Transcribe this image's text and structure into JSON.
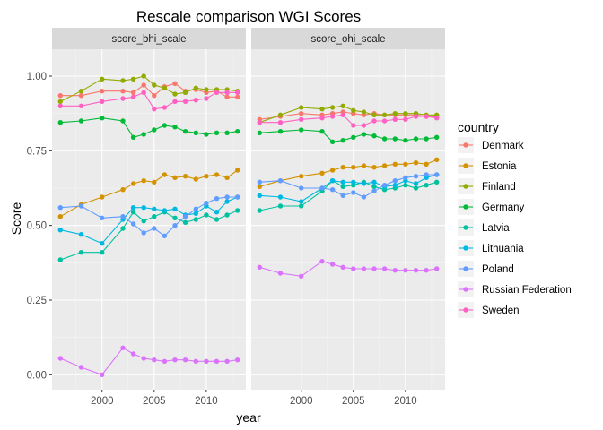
{
  "chart_data": {
    "type": "line",
    "title": "Rescale comparison WGI Scores",
    "xlabel": "year",
    "ylabel": "Score",
    "xlim": [
      1995.2,
      2013.8
    ],
    "ylim": [
      -0.05,
      1.09
    ],
    "x_ticks": [
      2000,
      2005,
      2010
    ],
    "x_tick_labels": [
      "2000",
      "2005",
      "2010"
    ],
    "y_ticks": [
      0,
      0.25,
      0.5,
      0.75,
      1.0
    ],
    "y_tick_labels": [
      "0.00",
      "0.25",
      "0.50",
      "0.75",
      "1.00"
    ],
    "grid": true,
    "legend_title": "country",
    "legend_position": "right",
    "x": [
      1996,
      1998,
      2000,
      2002,
      2003,
      2004,
      2005,
      2006,
      2007,
      2008,
      2009,
      2010,
      2011,
      2012,
      2013
    ],
    "panels": [
      {
        "name": "score_bhi_scale",
        "series": [
          {
            "name": "Denmark",
            "color": "#F8766D",
            "values": [
              0.935,
              0.935,
              0.95,
              0.95,
              0.945,
              0.97,
              0.935,
              0.965,
              0.975,
              0.95,
              0.955,
              0.945,
              0.95,
              0.93,
              0.93
            ]
          },
          {
            "name": "Estonia",
            "color": "#D39200",
            "values": [
              0.53,
              0.57,
              0.595,
              0.62,
              0.64,
              0.65,
              0.645,
              0.67,
              0.66,
              0.665,
              0.655,
              0.665,
              0.67,
              0.66,
              0.685
            ]
          },
          {
            "name": "Finland",
            "color": "#93AA00",
            "values": [
              0.915,
              0.95,
              0.99,
              0.985,
              0.99,
              1.0,
              0.97,
              0.96,
              0.94,
              0.945,
              0.96,
              0.955,
              0.955,
              0.955,
              0.95
            ]
          },
          {
            "name": "Germany",
            "color": "#00BA38",
            "values": [
              0.845,
              0.85,
              0.86,
              0.85,
              0.795,
              0.805,
              0.82,
              0.835,
              0.83,
              0.815,
              0.81,
              0.805,
              0.81,
              0.81,
              0.815
            ]
          },
          {
            "name": "Latvia",
            "color": "#00C19F",
            "values": [
              0.385,
              0.41,
              0.41,
              0.49,
              0.545,
              0.515,
              0.53,
              0.545,
              0.525,
              0.51,
              0.52,
              0.535,
              0.52,
              0.535,
              0.55
            ]
          },
          {
            "name": "Lithuania",
            "color": "#00B9E3",
            "values": [
              0.485,
              0.47,
              0.44,
              0.52,
              0.56,
              0.56,
              0.555,
              0.55,
              0.555,
              0.535,
              0.54,
              0.565,
              0.545,
              0.58,
              0.595
            ]
          },
          {
            "name": "Poland",
            "color": "#619CFF",
            "values": [
              0.56,
              0.565,
              0.525,
              0.53,
              0.505,
              0.475,
              0.49,
              0.465,
              0.5,
              0.53,
              0.555,
              0.575,
              0.59,
              0.595,
              0.595
            ]
          },
          {
            "name": "Russian Federation",
            "color": "#DB72FB",
            "values": [
              0.055,
              0.025,
              0.0,
              0.09,
              0.07,
              0.055,
              0.05,
              0.045,
              0.05,
              0.05,
              0.045,
              0.045,
              0.045,
              0.045,
              0.05
            ]
          },
          {
            "name": "Sweden",
            "color": "#FF61C3",
            "values": [
              0.9,
              0.9,
              0.915,
              0.925,
              0.93,
              0.945,
              0.89,
              0.895,
              0.915,
              0.915,
              0.92,
              0.925,
              0.945,
              0.945,
              0.945
            ]
          }
        ]
      },
      {
        "name": "score_ohi_scale",
        "series": [
          {
            "name": "Denmark",
            "color": "#F8766D",
            "values": [
              0.855,
              0.865,
              0.875,
              0.87,
              0.875,
              0.88,
              0.875,
              0.87,
              0.875,
              0.87,
              0.87,
              0.87,
              0.87,
              0.865,
              0.865
            ]
          },
          {
            "name": "Estonia",
            "color": "#D39200",
            "values": [
              0.63,
              0.65,
              0.665,
              0.675,
              0.685,
              0.695,
              0.695,
              0.7,
              0.695,
              0.7,
              0.705,
              0.705,
              0.71,
              0.705,
              0.72
            ]
          },
          {
            "name": "Finland",
            "color": "#93AA00",
            "values": [
              0.845,
              0.87,
              0.895,
              0.89,
              0.895,
              0.9,
              0.885,
              0.88,
              0.87,
              0.87,
              0.875,
              0.875,
              0.875,
              0.87,
              0.87
            ]
          },
          {
            "name": "Germany",
            "color": "#00BA38",
            "values": [
              0.81,
              0.815,
              0.82,
              0.815,
              0.78,
              0.785,
              0.795,
              0.805,
              0.8,
              0.79,
              0.79,
              0.785,
              0.79,
              0.79,
              0.795
            ]
          },
          {
            "name": "Latvia",
            "color": "#00C19F",
            "values": [
              0.55,
              0.565,
              0.565,
              0.615,
              0.65,
              0.63,
              0.635,
              0.645,
              0.63,
              0.62,
              0.625,
              0.635,
              0.625,
              0.635,
              0.645
            ]
          },
          {
            "name": "Lithuania",
            "color": "#00B9E3",
            "values": [
              0.6,
              0.595,
              0.58,
              0.625,
              0.65,
              0.645,
              0.645,
              0.64,
              0.645,
              0.63,
              0.635,
              0.65,
              0.64,
              0.66,
              0.67
            ]
          },
          {
            "name": "Poland",
            "color": "#619CFF",
            "values": [
              0.645,
              0.65,
              0.625,
              0.625,
              0.62,
              0.6,
              0.61,
              0.595,
              0.615,
              0.635,
              0.65,
              0.66,
              0.665,
              0.67,
              0.67
            ]
          },
          {
            "name": "Russian Federation",
            "color": "#DB72FB",
            "values": [
              0.36,
              0.34,
              0.33,
              0.38,
              0.37,
              0.36,
              0.355,
              0.355,
              0.355,
              0.355,
              0.35,
              0.35,
              0.35,
              0.35,
              0.355
            ]
          },
          {
            "name": "Sweden",
            "color": "#FF61C3",
            "values": [
              0.845,
              0.845,
              0.855,
              0.86,
              0.865,
              0.87,
              0.835,
              0.835,
              0.85,
              0.85,
              0.855,
              0.855,
              0.865,
              0.865,
              0.86
            ]
          }
        ]
      }
    ]
  }
}
